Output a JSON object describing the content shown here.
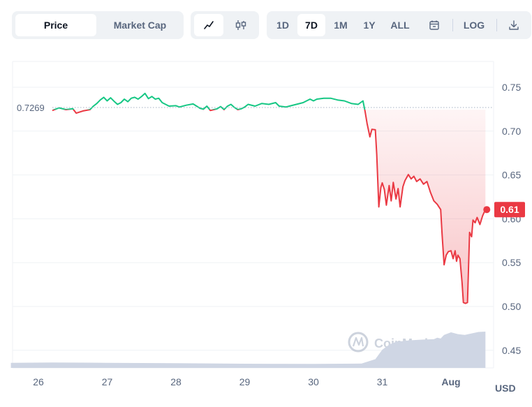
{
  "toolbar": {
    "metric_tabs": [
      "Price",
      "Market Cap"
    ],
    "active_metric": "Price",
    "chart_type_icons": [
      "line-chart-icon",
      "candlestick-icon"
    ],
    "ranges": [
      "1D",
      "7D",
      "1M",
      "1Y",
      "ALL"
    ],
    "active_range": "7D",
    "calendar_icon": "calendar-icon",
    "log_label": "LOG",
    "download_icon": "download-icon"
  },
  "chart_data": {
    "type": "line",
    "reference_label": "0.7269",
    "reference_value": 0.7269,
    "current_label": "0.61",
    "current_value": 0.61,
    "yticks": [
      "0.75",
      "0.70",
      "0.65",
      "0.60",
      "0.55",
      "0.50",
      "0.45"
    ],
    "xticks": [
      "26",
      "27",
      "28",
      "29",
      "30",
      "31",
      "Aug"
    ],
    "currency_label": "USD",
    "watermark": "CoinMarketCap",
    "colors": {
      "up": "#16c784",
      "down": "#ea3943",
      "volume": "#cfd6e4"
    },
    "ylim": [
      0.42,
      0.77
    ],
    "series": [
      {
        "values": [
          [
            26.2,
            0.7235
          ],
          [
            26.3,
            0.7265
          ],
          [
            26.4,
            0.7245
          ],
          [
            26.5,
            0.7255
          ],
          [
            26.55,
            0.7205
          ],
          [
            26.65,
            0.723
          ],
          [
            26.75,
            0.7245
          ],
          [
            26.8,
            0.7285
          ],
          [
            26.85,
            0.7315
          ],
          [
            26.9,
            0.7355
          ],
          [
            26.95,
            0.7385
          ],
          [
            27.0,
            0.7345
          ],
          [
            27.05,
            0.738
          ],
          [
            27.1,
            0.734
          ],
          [
            27.15,
            0.7305
          ],
          [
            27.2,
            0.7325
          ],
          [
            27.25,
            0.7365
          ],
          [
            27.3,
            0.7335
          ],
          [
            27.35,
            0.7375
          ],
          [
            27.4,
            0.7385
          ],
          [
            27.45,
            0.7365
          ],
          [
            27.5,
            0.7395
          ],
          [
            27.55,
            0.743
          ],
          [
            27.6,
            0.737
          ],
          [
            27.65,
            0.7395
          ],
          [
            27.7,
            0.7365
          ],
          [
            27.75,
            0.7375
          ],
          [
            27.8,
            0.7325
          ],
          [
            27.9,
            0.7285
          ],
          [
            28.0,
            0.729
          ],
          [
            28.05,
            0.7275
          ],
          [
            28.15,
            0.7295
          ],
          [
            28.25,
            0.731
          ],
          [
            28.3,
            0.7285
          ],
          [
            28.35,
            0.726
          ],
          [
            28.4,
            0.725
          ],
          [
            28.45,
            0.7285
          ],
          [
            28.5,
            0.7235
          ],
          [
            28.6,
            0.7255
          ],
          [
            28.65,
            0.728
          ],
          [
            28.7,
            0.7245
          ],
          [
            28.75,
            0.7285
          ],
          [
            28.8,
            0.7305
          ],
          [
            28.85,
            0.727
          ],
          [
            28.9,
            0.7245
          ],
          [
            28.95,
            0.7255
          ],
          [
            29.0,
            0.7275
          ],
          [
            29.05,
            0.7305
          ],
          [
            29.15,
            0.7285
          ],
          [
            29.25,
            0.7315
          ],
          [
            29.35,
            0.7305
          ],
          [
            29.45,
            0.7325
          ],
          [
            29.5,
            0.7285
          ],
          [
            29.6,
            0.7275
          ],
          [
            29.65,
            0.7285
          ],
          [
            29.75,
            0.7305
          ],
          [
            29.85,
            0.7325
          ],
          [
            29.9,
            0.7345
          ],
          [
            29.95,
            0.7365
          ],
          [
            30.0,
            0.7345
          ],
          [
            30.05,
            0.7365
          ],
          [
            30.15,
            0.7375
          ],
          [
            30.25,
            0.7375
          ],
          [
            30.35,
            0.7355
          ],
          [
            30.45,
            0.7345
          ],
          [
            30.55,
            0.7315
          ],
          [
            30.65,
            0.7305
          ],
          [
            30.72,
            0.7345
          ],
          [
            30.75,
            0.7225
          ],
          [
            30.78,
            0.7085
          ],
          [
            30.82,
            0.6935
          ],
          [
            30.85,
            0.702
          ],
          [
            30.9,
            0.7015
          ],
          [
            30.92,
            0.6735
          ],
          [
            30.95,
            0.6135
          ],
          [
            30.98,
            0.6355
          ],
          [
            31.0,
            0.641
          ],
          [
            31.03,
            0.6335
          ],
          [
            31.06,
            0.6155
          ],
          [
            31.1,
            0.638
          ],
          [
            31.13,
            0.6205
          ],
          [
            31.16,
            0.6415
          ],
          [
            31.2,
            0.6225
          ],
          [
            31.23,
            0.6345
          ],
          [
            31.26,
            0.6135
          ],
          [
            31.3,
            0.6365
          ],
          [
            31.33,
            0.6435
          ],
          [
            31.38,
            0.6505
          ],
          [
            31.42,
            0.6455
          ],
          [
            31.46,
            0.6485
          ],
          [
            31.5,
            0.6425
          ],
          [
            31.55,
            0.6455
          ],
          [
            31.6,
            0.6395
          ],
          [
            31.65,
            0.6425
          ],
          [
            31.7,
            0.6305
          ],
          [
            31.75,
            0.6205
          ],
          [
            31.8,
            0.6165
          ],
          [
            31.85,
            0.6105
          ],
          [
            31.87,
            0.5825
          ],
          [
            31.9,
            0.5475
          ],
          [
            31.93,
            0.5585
          ],
          [
            31.96,
            0.5625
          ],
          [
            32.0,
            0.5635
          ],
          [
            32.03,
            0.5545
          ],
          [
            32.06,
            0.5635
          ],
          [
            32.08,
            0.5515
          ],
          [
            32.1,
            0.5585
          ],
          [
            32.13,
            0.5545
          ],
          [
            32.16,
            0.5275
          ],
          [
            32.18,
            0.5045
          ],
          [
            32.21,
            0.5035
          ],
          [
            32.24,
            0.5045
          ],
          [
            32.27,
            0.5845
          ],
          [
            32.3,
            0.5795
          ],
          [
            32.32,
            0.5985
          ],
          [
            32.35,
            0.5955
          ],
          [
            32.38,
            0.6015
          ],
          [
            32.42,
            0.5935
          ],
          [
            32.46,
            0.6035
          ],
          [
            32.5,
            0.6105
          ]
        ]
      }
    ],
    "volume": [
      [
        25.6,
        0.007
      ],
      [
        26.2,
        0.0075
      ],
      [
        27.0,
        0.007
      ],
      [
        28.0,
        0.0065
      ],
      [
        29.0,
        0.0058
      ],
      [
        30.0,
        0.0055
      ],
      [
        30.7,
        0.006
      ],
      [
        30.9,
        0.012
      ],
      [
        31.0,
        0.025
      ],
      [
        31.1,
        0.032
      ],
      [
        31.2,
        0.036
      ],
      [
        31.4,
        0.038
      ],
      [
        31.6,
        0.039
      ],
      [
        31.75,
        0.0395
      ],
      [
        31.8,
        0.0415
      ],
      [
        31.85,
        0.0405
      ],
      [
        31.9,
        0.0455
      ],
      [
        32.0,
        0.049
      ],
      [
        32.1,
        0.0465
      ],
      [
        32.2,
        0.0455
      ],
      [
        32.3,
        0.0475
      ],
      [
        32.4,
        0.0495
      ],
      [
        32.5,
        0.05
      ]
    ]
  }
}
